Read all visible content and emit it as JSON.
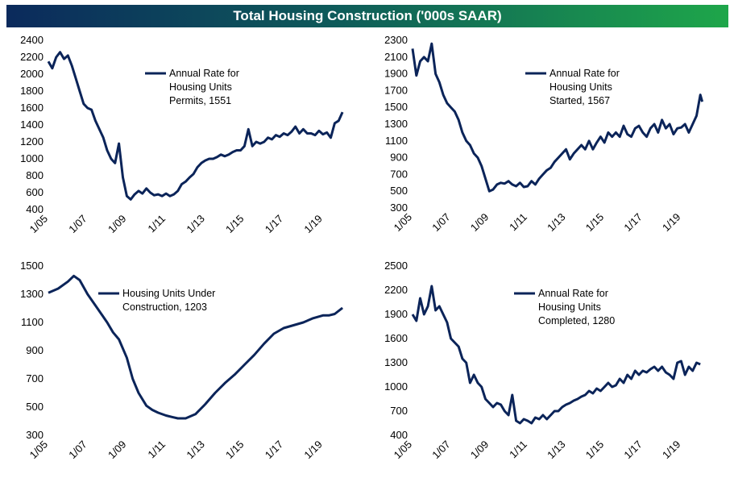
{
  "page": {
    "title": "Total Housing Construction ('000s SAAR)"
  },
  "colors": {
    "series": "#0b2459",
    "banner_start": "#0b2a5c",
    "banner_end": "#1ea64a"
  },
  "chart_data": [
    {
      "type": "line",
      "ylim": [
        400,
        2400
      ],
      "yticks": [
        400,
        600,
        800,
        1000,
        1200,
        1400,
        1600,
        1800,
        2000,
        2200,
        2400
      ],
      "xlim": [
        2005.0,
        2020.2
      ],
      "xticks": [
        "1/05",
        "1/07",
        "1/09",
        "1/11",
        "1/13",
        "1/15",
        "1/17",
        "1/19"
      ],
      "legend": [
        "Annual Rate for",
        "Housing Units",
        "Permits, 1551"
      ],
      "series": [
        {
          "x": [
            2005.0,
            2005.2,
            2005.4,
            2005.6,
            2005.8,
            2006.0,
            2006.2,
            2006.4,
            2006.6,
            2006.8,
            2007.0,
            2007.2,
            2007.4,
            2007.6,
            2007.8,
            2008.0,
            2008.2,
            2008.4,
            2008.6,
            2008.8,
            2009.0,
            2009.2,
            2009.4,
            2009.6,
            2009.8,
            2010.0,
            2010.2,
            2010.4,
            2010.6,
            2010.8,
            2011.0,
            2011.2,
            2011.4,
            2011.6,
            2011.8,
            2012.0,
            2012.2,
            2012.4,
            2012.6,
            2012.8,
            2013.0,
            2013.2,
            2013.4,
            2013.6,
            2013.8,
            2014.0,
            2014.2,
            2014.4,
            2014.6,
            2014.8,
            2015.0,
            2015.2,
            2015.4,
            2015.6,
            2015.8,
            2016.0,
            2016.2,
            2016.4,
            2016.6,
            2016.8,
            2017.0,
            2017.2,
            2017.4,
            2017.6,
            2017.8,
            2018.0,
            2018.2,
            2018.4,
            2018.6,
            2018.8,
            2019.0,
            2019.2,
            2019.4,
            2019.6,
            2019.8,
            2020.0
          ],
          "y": [
            2150,
            2070,
            2200,
            2260,
            2180,
            2220,
            2100,
            1950,
            1800,
            1650,
            1600,
            1580,
            1450,
            1350,
            1250,
            1100,
            1000,
            950,
            1180,
            780,
            560,
            520,
            580,
            620,
            590,
            650,
            600,
            570,
            580,
            560,
            590,
            560,
            580,
            620,
            700,
            730,
            780,
            820,
            900,
            950,
            980,
            1000,
            1000,
            1020,
            1050,
            1030,
            1050,
            1080,
            1100,
            1100,
            1150,
            1350,
            1150,
            1200,
            1180,
            1200,
            1250,
            1230,
            1280,
            1260,
            1300,
            1280,
            1320,
            1380,
            1300,
            1350,
            1300,
            1300,
            1280,
            1330,
            1290,
            1310,
            1250,
            1420,
            1450,
            1551
          ]
        }
      ]
    },
    {
      "type": "line",
      "ylim": [
        300,
        2300
      ],
      "yticks": [
        300,
        500,
        700,
        900,
        1100,
        1300,
        1500,
        1700,
        1900,
        2100,
        2300
      ],
      "xlim": [
        2005.0,
        2020.2
      ],
      "xticks": [
        "1/05",
        "1/07",
        "1/09",
        "1/11",
        "1/13",
        "1/15",
        "1/17",
        "1/19"
      ],
      "legend": [
        "Annual Rate for",
        "Housing Units",
        "Started, 1567"
      ],
      "series": [
        {
          "x": [
            2005.0,
            2005.2,
            2005.4,
            2005.6,
            2005.8,
            2006.0,
            2006.2,
            2006.4,
            2006.6,
            2006.8,
            2007.0,
            2007.2,
            2007.4,
            2007.6,
            2007.8,
            2008.0,
            2008.2,
            2008.4,
            2008.6,
            2008.8,
            2009.0,
            2009.2,
            2009.4,
            2009.6,
            2009.8,
            2010.0,
            2010.2,
            2010.4,
            2010.6,
            2010.8,
            2011.0,
            2011.2,
            2011.4,
            2011.6,
            2011.8,
            2012.0,
            2012.2,
            2012.4,
            2012.6,
            2012.8,
            2013.0,
            2013.2,
            2013.4,
            2013.6,
            2013.8,
            2014.0,
            2014.2,
            2014.4,
            2014.6,
            2014.8,
            2015.0,
            2015.2,
            2015.4,
            2015.6,
            2015.8,
            2016.0,
            2016.2,
            2016.4,
            2016.6,
            2016.8,
            2017.0,
            2017.2,
            2017.4,
            2017.6,
            2017.8,
            2018.0,
            2018.2,
            2018.4,
            2018.6,
            2018.8,
            2019.0,
            2019.2,
            2019.4,
            2019.6,
            2019.8,
            2020.0,
            2020.1
          ],
          "y": [
            2200,
            1880,
            2050,
            2100,
            2050,
            2260,
            1900,
            1800,
            1650,
            1550,
            1500,
            1450,
            1350,
            1200,
            1100,
            1050,
            950,
            900,
            800,
            650,
            500,
            520,
            580,
            600,
            590,
            620,
            580,
            560,
            600,
            550,
            560,
            620,
            580,
            650,
            700,
            750,
            780,
            850,
            900,
            950,
            1000,
            880,
            950,
            1000,
            1050,
            1000,
            1100,
            1000,
            1080,
            1150,
            1080,
            1200,
            1150,
            1200,
            1150,
            1280,
            1180,
            1150,
            1250,
            1280,
            1200,
            1150,
            1250,
            1300,
            1200,
            1350,
            1250,
            1300,
            1180,
            1250,
            1260,
            1300,
            1200,
            1300,
            1400,
            1650,
            1567
          ]
        }
      ]
    },
    {
      "type": "line",
      "ylim": [
        300,
        1500
      ],
      "yticks": [
        300,
        500,
        700,
        900,
        1100,
        1300,
        1500
      ],
      "xlim": [
        2005.0,
        2020.2
      ],
      "xticks": [
        "1/05",
        "1/07",
        "1/09",
        "1/11",
        "1/13",
        "1/15",
        "1/17",
        "1/19"
      ],
      "legend": [
        "Housing Units Under",
        "Construction, 1203"
      ],
      "series": [
        {
          "x": [
            2005.0,
            2005.5,
            2006.0,
            2006.3,
            2006.6,
            2007.0,
            2007.5,
            2008.0,
            2008.3,
            2008.6,
            2009.0,
            2009.3,
            2009.6,
            2010.0,
            2010.3,
            2010.6,
            2011.0,
            2011.3,
            2011.6,
            2012.0,
            2012.5,
            2013.0,
            2013.5,
            2014.0,
            2014.5,
            2015.0,
            2015.5,
            2016.0,
            2016.5,
            2017.0,
            2017.5,
            2018.0,
            2018.5,
            2019.0,
            2019.3,
            2019.6,
            2020.0
          ],
          "y": [
            1310,
            1340,
            1390,
            1430,
            1400,
            1300,
            1200,
            1100,
            1030,
            980,
            850,
            700,
            600,
            510,
            480,
            460,
            440,
            430,
            420,
            420,
            450,
            520,
            600,
            670,
            730,
            800,
            870,
            950,
            1020,
            1060,
            1080,
            1100,
            1130,
            1150,
            1150,
            1160,
            1203
          ]
        }
      ]
    },
    {
      "type": "line",
      "ylim": [
        400,
        2500
      ],
      "yticks": [
        400,
        700,
        1000,
        1300,
        1600,
        1900,
        2200,
        2500
      ],
      "xlim": [
        2005.0,
        2020.2
      ],
      "xticks": [
        "1/05",
        "1/07",
        "1/09",
        "1/11",
        "1/13",
        "1/15",
        "1/17",
        "1/19"
      ],
      "legend": [
        "Annual Rate for",
        "Housing Units",
        "Completed, 1280"
      ],
      "series": [
        {
          "x": [
            2005.0,
            2005.2,
            2005.4,
            2005.6,
            2005.8,
            2006.0,
            2006.2,
            2006.4,
            2006.6,
            2006.8,
            2007.0,
            2007.2,
            2007.4,
            2007.6,
            2007.8,
            2008.0,
            2008.2,
            2008.4,
            2008.6,
            2008.8,
            2009.0,
            2009.2,
            2009.4,
            2009.6,
            2009.8,
            2010.0,
            2010.2,
            2010.4,
            2010.6,
            2010.8,
            2011.0,
            2011.2,
            2011.4,
            2011.6,
            2011.8,
            2012.0,
            2012.2,
            2012.4,
            2012.6,
            2012.8,
            2013.0,
            2013.2,
            2013.4,
            2013.6,
            2013.8,
            2014.0,
            2014.2,
            2014.4,
            2014.6,
            2014.8,
            2015.0,
            2015.2,
            2015.4,
            2015.6,
            2015.8,
            2016.0,
            2016.2,
            2016.4,
            2016.6,
            2016.8,
            2017.0,
            2017.2,
            2017.4,
            2017.6,
            2017.8,
            2018.0,
            2018.2,
            2018.4,
            2018.6,
            2018.8,
            2019.0,
            2019.2,
            2019.4,
            2019.6,
            2019.8,
            2020.0
          ],
          "y": [
            1900,
            1820,
            2100,
            1900,
            2000,
            2250,
            1950,
            2000,
            1900,
            1800,
            1600,
            1550,
            1500,
            1350,
            1300,
            1050,
            1150,
            1050,
            1000,
            850,
            800,
            750,
            800,
            780,
            700,
            650,
            900,
            580,
            550,
            600,
            580,
            550,
            620,
            600,
            650,
            600,
            650,
            700,
            700,
            750,
            780,
            800,
            830,
            850,
            880,
            900,
            950,
            920,
            980,
            950,
            1000,
            1050,
            1000,
            1020,
            1100,
            1050,
            1150,
            1100,
            1200,
            1150,
            1200,
            1180,
            1220,
            1250,
            1200,
            1250,
            1180,
            1150,
            1100,
            1300,
            1320,
            1150,
            1250,
            1200,
            1300,
            1280
          ]
        }
      ]
    }
  ]
}
